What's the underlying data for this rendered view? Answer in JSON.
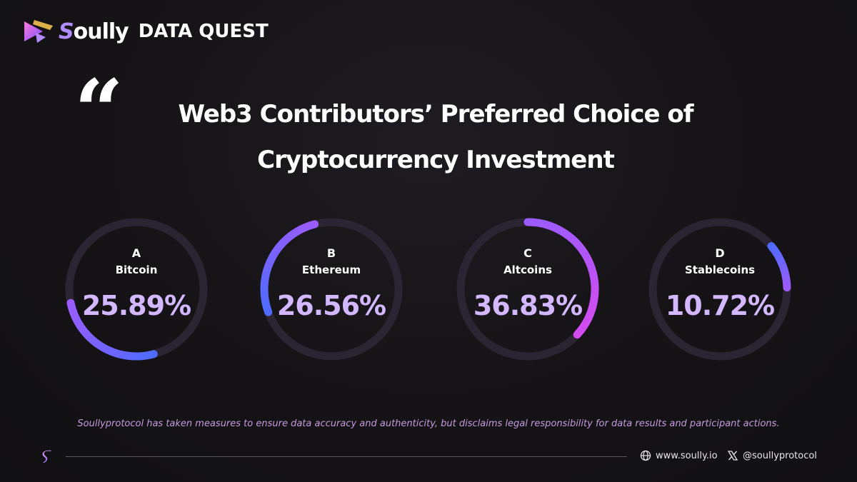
{
  "header": {
    "brand_name": "oully",
    "brand_initial": "S",
    "brand_sub": "DATA QUEST",
    "logo_icon": "soully-play-logo-icon"
  },
  "quote_mark": "“",
  "title": {
    "line1": "Web3 Contributors’ Preferred Choice of",
    "line2": "Cryptocurrency Investment"
  },
  "chart_data": {
    "type": "pie",
    "variant": "donut",
    "categories": [
      "Bitcoin",
      "Ethereum",
      "Altcoins",
      "Stablecoins"
    ],
    "letters": [
      "A",
      "B",
      "C",
      "D"
    ],
    "values": [
      25.89,
      26.56,
      36.83,
      10.72
    ],
    "value_labels": [
      "25.89%",
      "26.56%",
      "36.83%",
      "10.72%"
    ],
    "unit": "%",
    "colors": {
      "track": "#2b2433",
      "arc_start": "#4f6bff",
      "arc_mid": "#9b5cff",
      "arc_end": "#d24cf0",
      "value_text": "#d4b8ff"
    }
  },
  "disclaimer": "Soullyprotocol has taken measures to ensure data accuracy and authenticity, but disclaims legal responsibility for data results and participant actions.",
  "footer": {
    "logo_icon": "soully-s-icon",
    "website": "www.soully.io",
    "website_icon": "globe-icon",
    "social": "@soullyprotocol",
    "social_icon": "x-icon"
  }
}
